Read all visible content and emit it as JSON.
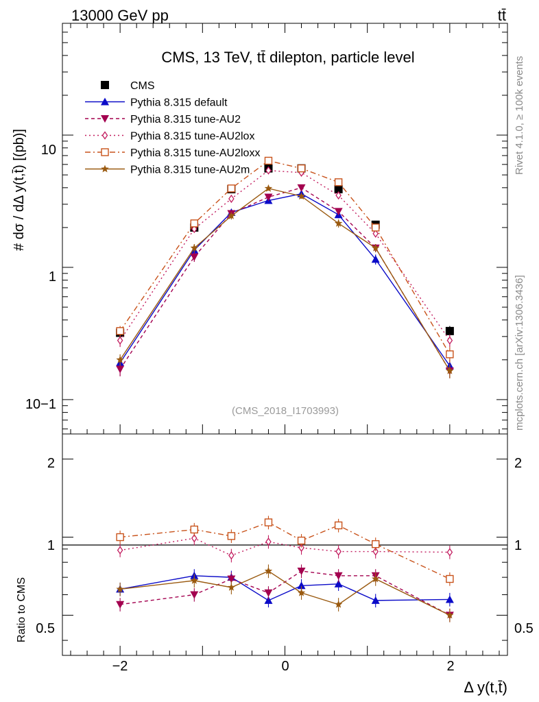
{
  "header": {
    "energy_label": "13000 GeV pp",
    "process_label": "tt̄"
  },
  "side_labels": {
    "rivet": "Rivet 4.1.0, ≥ 100k events",
    "mcplots": "mcplots.cern.ch [arXiv:1306.3436]"
  },
  "chart_data": {
    "type": "scatter",
    "title": "CMS, 13 TeV, tt̄ dilepton, particle level",
    "analysis_id": "(CMS_2018_I1703993)",
    "xlabel": "Δ y(t,t̄)",
    "ylabel_top": "# dσ / dΔ y(t,t̄) [(pb)]",
    "ylabel_ratio": "Ratio to CMS",
    "xlim": [
      -2.7,
      2.7
    ],
    "ylim_main": [
      0.055,
      70
    ],
    "ylim_ratio": [
      0.35,
      2.5
    ],
    "y_scale": "log",
    "x": [
      -2.0,
      -1.1,
      -0.65,
      -0.2,
      0.2,
      0.65,
      1.1,
      2.0
    ],
    "x_tick_labels": [
      "−2",
      "0",
      "2"
    ],
    "y_tick_labels_main": [
      "10−1",
      "1",
      "10"
    ],
    "y_tick_labels_ratio": [
      "0.5",
      "1",
      "2"
    ],
    "legend_position": "top-left",
    "series": [
      {
        "name": "CMS",
        "color": "#000000",
        "dash": "",
        "marker": "square",
        "values": [
          0.32,
          2.0,
          3.9,
          5.6,
          5.6,
          3.9,
          2.1,
          0.33
        ],
        "ratio": [
          1,
          1,
          1,
          1,
          1,
          1,
          1,
          1
        ],
        "errors": [
          0.03,
          0.1,
          0.2,
          0.25,
          0.25,
          0.2,
          0.1,
          0.03
        ]
      },
      {
        "name": "Pythia 8.315 default",
        "color": "#0b0bc8",
        "dash": "",
        "marker": "triangle-up",
        "values": [
          0.19,
          1.35,
          2.6,
          3.2,
          3.6,
          2.5,
          1.15,
          0.18
        ],
        "ratio": [
          0.63,
          0.71,
          0.7,
          0.57,
          0.65,
          0.66,
          0.57,
          0.575
        ],
        "errors": [
          0.02,
          0.1,
          0.15,
          0.15,
          0.15,
          0.15,
          0.1,
          0.02
        ]
      },
      {
        "name": "Pythia 8.315 tune-AU2",
        "color": "#a3004f",
        "dash": "5,4",
        "marker": "triangle-down",
        "values": [
          0.17,
          1.2,
          2.55,
          3.4,
          4.0,
          2.65,
          1.4,
          0.165
        ],
        "ratio": [
          0.55,
          0.6,
          0.69,
          0.61,
          0.74,
          0.71,
          0.71,
          0.5
        ],
        "errors": [
          0.02,
          0.1,
          0.15,
          0.15,
          0.15,
          0.15,
          0.1,
          0.02
        ]
      },
      {
        "name": "Pythia 8.315 tune-AU2lox",
        "color": "#c21b5e",
        "dash": "2,4",
        "marker": "diamond-open",
        "values": [
          0.28,
          1.95,
          3.3,
          5.4,
          5.2,
          3.5,
          1.8,
          0.28
        ],
        "ratio": [
          0.89,
          0.99,
          0.85,
          0.96,
          0.91,
          0.88,
          0.88,
          0.875
        ],
        "errors": [
          0.03,
          0.1,
          0.2,
          0.25,
          0.25,
          0.2,
          0.1,
          0.03
        ]
      },
      {
        "name": "Pythia 8.315 tune-AU2loxx",
        "color": "#c8521a",
        "dash": "8,4,2,4",
        "marker": "square-open",
        "values": [
          0.33,
          2.15,
          3.95,
          6.4,
          5.6,
          4.4,
          2.0,
          0.22
        ],
        "ratio": [
          1.0,
          1.07,
          1.01,
          1.14,
          0.97,
          1.11,
          0.94,
          0.69
        ],
        "errors": [
          0.03,
          0.1,
          0.2,
          0.25,
          0.25,
          0.2,
          0.1,
          0.03
        ]
      },
      {
        "name": "Pythia 8.315 tune-AU2m",
        "color": "#9a5a10",
        "dash": "",
        "marker": "star",
        "values": [
          0.2,
          1.4,
          2.45,
          3.95,
          3.45,
          2.15,
          1.4,
          0.165
        ],
        "ratio": [
          0.63,
          0.68,
          0.64,
          0.74,
          0.61,
          0.55,
          0.69,
          0.5
        ],
        "errors": [
          0.02,
          0.1,
          0.15,
          0.15,
          0.15,
          0.15,
          0.1,
          0.02
        ]
      }
    ]
  }
}
